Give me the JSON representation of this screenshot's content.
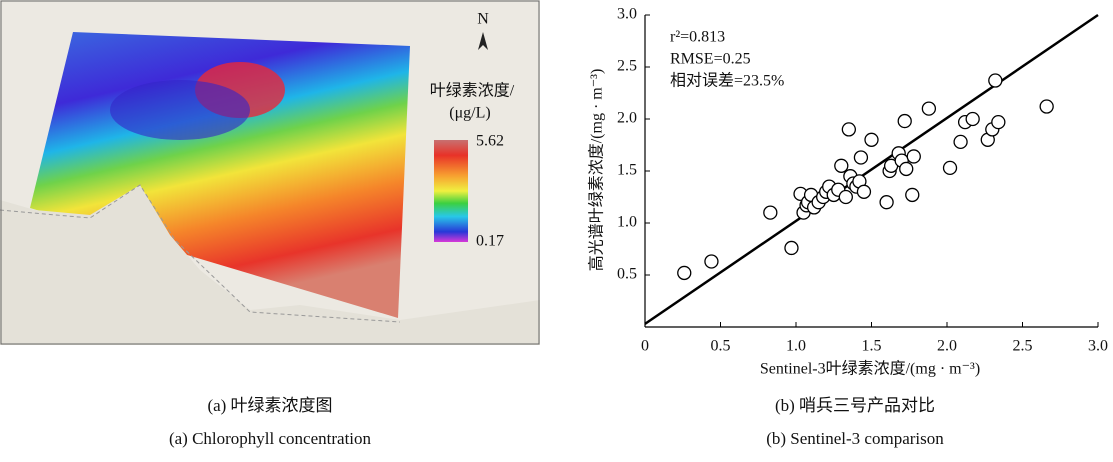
{
  "map": {
    "north": "N",
    "legend_title": [
      "叶绿素浓度/",
      "(μg/L)"
    ],
    "colorbar": {
      "max": 5.62,
      "min": 0.17
    },
    "caption_cn": "(a) 叶绿素浓度图",
    "caption_en": "(a) Chlorophyll concentration"
  },
  "chart_data": {
    "type": "scatter",
    "x_label": "Sentinel-3叶绿素浓度/(mg · m⁻³)",
    "y_label": "高光谱叶绿素浓度/(mg · m⁻³)",
    "annotations": [
      "r²=0.813",
      "RMSE=0.25",
      "相对误差=23.5%"
    ],
    "caption_cn": "(b) 哨兵三号产品对比",
    "caption_en": "(b) Sentinel-3 comparison",
    "xlim": [
      0,
      3
    ],
    "ylim": [
      0,
      3
    ],
    "xticks": [
      0,
      0.5,
      {
        "value": 1,
        "label": "1.0"
      },
      1.5,
      {
        "value": 2,
        "label": "2.0"
      },
      2.5,
      {
        "value": 3,
        "label": "3.0"
      }
    ],
    "yticks": [
      0.5,
      {
        "value": 1,
        "label": "1.0"
      },
      1.5,
      {
        "value": 2,
        "label": "2.0"
      },
      2.5,
      {
        "value": 3,
        "label": "3.0"
      }
    ],
    "x": [
      0.26,
      0.44,
      0.83,
      0.97,
      1.03,
      1.05,
      1.07,
      1.08,
      1.1,
      1.12,
      1.15,
      1.18,
      1.2,
      1.22,
      1.25,
      1.28,
      1.3,
      1.33,
      1.35,
      1.36,
      1.38,
      1.4,
      1.42,
      1.43,
      1.45,
      1.5,
      1.6,
      1.62,
      1.63,
      1.68,
      1.7,
      1.72,
      1.73,
      1.77,
      1.78,
      1.88,
      2.02,
      2.09,
      2.12,
      2.17,
      2.27,
      2.3,
      2.32,
      2.34,
      2.66
    ],
    "y": [
      0.52,
      0.63,
      1.1,
      0.76,
      1.28,
      1.1,
      1.17,
      1.2,
      1.27,
      1.15,
      1.2,
      1.25,
      1.3,
      1.35,
      1.27,
      1.32,
      1.55,
      1.25,
      1.9,
      1.45,
      1.38,
      1.35,
      1.4,
      1.63,
      1.3,
      1.8,
      1.2,
      1.5,
      1.55,
      1.67,
      1.6,
      1.98,
      1.52,
      1.27,
      1.64,
      2.1,
      1.53,
      1.78,
      1.97,
      2.0,
      1.8,
      1.9,
      2.37,
      1.97,
      2.12
    ],
    "fit": {
      "x": [
        0,
        3
      ],
      "y": [
        0.03,
        3.0
      ]
    },
    "color": "#000000"
  }
}
